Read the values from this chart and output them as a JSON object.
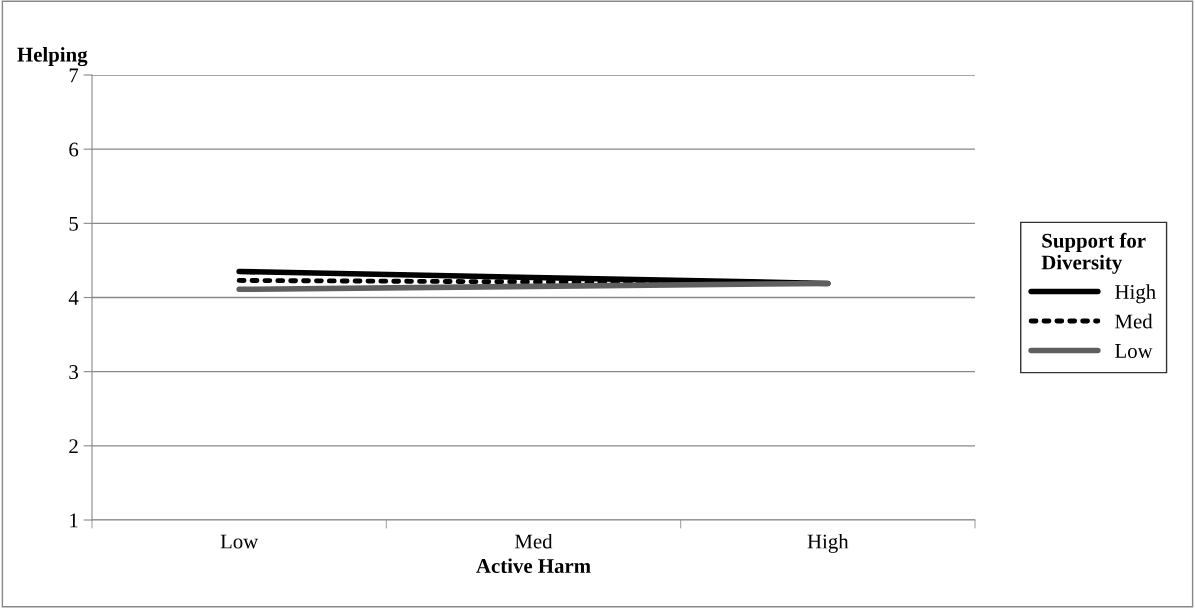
{
  "chart_data": {
    "type": "line",
    "xlabel": "Active Harm",
    "ylabel": "Helping",
    "legend_title": "Support for\nDiversity",
    "categories": [
      "Low",
      "Med",
      "High"
    ],
    "series": [
      {
        "name": "High",
        "color": "#000000",
        "line_style": "solid",
        "values": [
          4.35,
          4.27,
          4.19
        ]
      },
      {
        "name": "Med",
        "color": "#000000",
        "line_style": "dotted",
        "values": [
          4.23,
          4.21,
          4.19
        ]
      },
      {
        "name": "Low",
        "color": "#5f5f5f",
        "line_style": "solid",
        "values": [
          4.11,
          4.15,
          4.19
        ]
      }
    ],
    "ylim": [
      1,
      7
    ],
    "yticks": [
      1,
      2,
      3,
      4,
      5,
      6,
      7
    ],
    "grid": "y",
    "legend": "right",
    "marker": "none"
  }
}
